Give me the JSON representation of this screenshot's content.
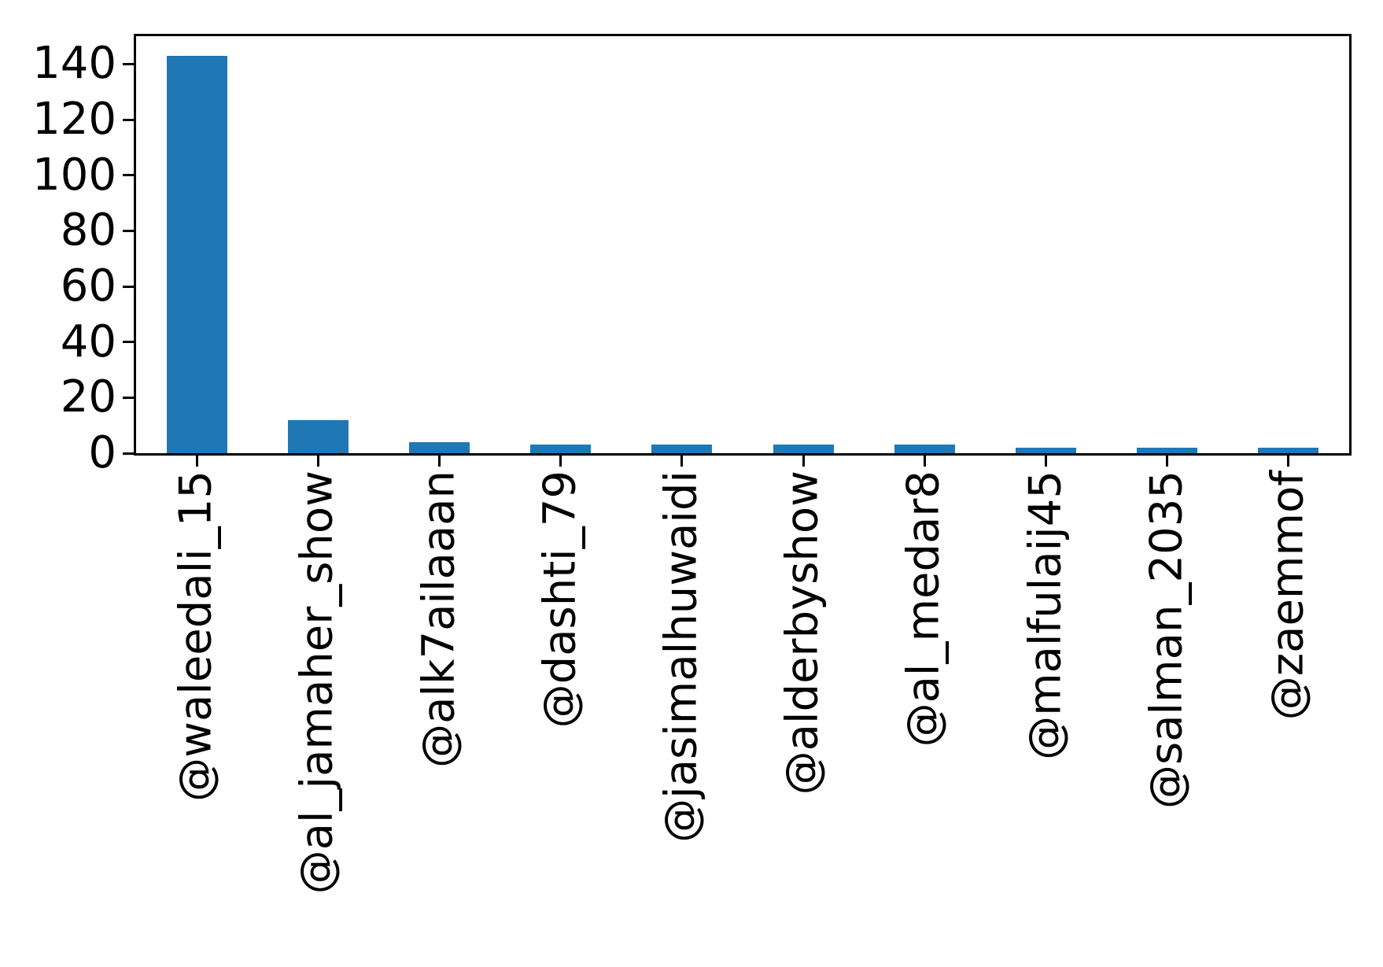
{
  "chart_data": {
    "type": "bar",
    "title": "",
    "xlabel": "",
    "ylabel": "",
    "categories": [
      "@waleedali_15",
      "@al_jamaher_show",
      "@alk7ailaaan",
      "@dashti_79",
      "@jasimalhuwaidi",
      "@alderbyshow",
      "@al_medar8",
      "@malfulaij45",
      "@salman_2035",
      "@zaemmof"
    ],
    "values": [
      143,
      12,
      4,
      3,
      3,
      3,
      3,
      2,
      2,
      2
    ],
    "ylim": [
      0,
      150
    ],
    "yticks": [
      0,
      20,
      40,
      60,
      80,
      100,
      120,
      140
    ],
    "x_tick_rotation_deg": 90,
    "bar_width_fraction": 0.5,
    "grid": false,
    "legend": "none",
    "colors": {
      "bar": "#1f77b4",
      "axis": "#000000",
      "tick_label": "#000000",
      "background": "#ffffff"
    }
  }
}
